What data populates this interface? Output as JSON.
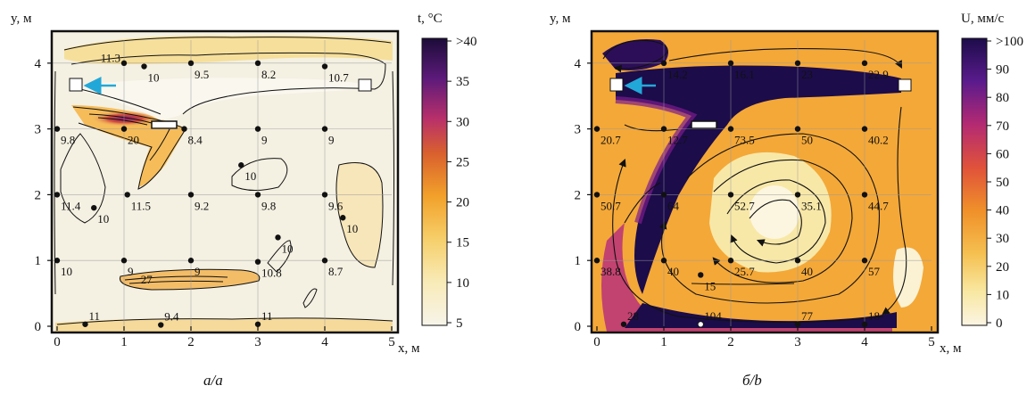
{
  "chart_data": [
    {
      "type": "heatmap",
      "caption": "а/a",
      "ylabel": "y, м",
      "xlabel": "x, м",
      "xlim": [
        0,
        5
      ],
      "ylim": [
        0,
        4.35
      ],
      "xticks": [
        0,
        1,
        2,
        3,
        4,
        5
      ],
      "yticks": [
        0,
        1,
        2,
        3,
        4
      ],
      "colorbar": {
        "title": "t, °C",
        "ticks": [
          "5",
          "10",
          "15",
          "20",
          "25",
          "30",
          "35",
          ">40"
        ],
        "min": 5,
        "max": 40
      },
      "colors": {
        "low": "#f7f4ea",
        "mid": "#f2a12a",
        "high": "#1c0c38"
      },
      "points": [
        {
          "x": 1,
          "y": 4,
          "label": ""
        },
        {
          "x": 1.3,
          "y": 3.95,
          "label": "10"
        },
        {
          "x": 2,
          "y": 4,
          "label": "9.5"
        },
        {
          "x": 3,
          "y": 4,
          "label": "8.2"
        },
        {
          "x": 4,
          "y": 3.95,
          "label": "10.7"
        },
        {
          "x": 0,
          "y": 3,
          "label": "9.8"
        },
        {
          "x": 1,
          "y": 3,
          "label": "20"
        },
        {
          "x": 1.9,
          "y": 3,
          "label": "8.4"
        },
        {
          "x": 3,
          "y": 3,
          "label": "9"
        },
        {
          "x": 4,
          "y": 3,
          "label": "9"
        },
        {
          "x": 2.75,
          "y": 2.45,
          "label": "10"
        },
        {
          "x": 0,
          "y": 2,
          "label": "11.4"
        },
        {
          "x": 1.05,
          "y": 2,
          "label": "11.5"
        },
        {
          "x": 2,
          "y": 2,
          "label": "9.2"
        },
        {
          "x": 3,
          "y": 2,
          "label": "9.8"
        },
        {
          "x": 4,
          "y": 2,
          "label": "9.6"
        },
        {
          "x": 0.55,
          "y": 1.8,
          "label": "10"
        },
        {
          "x": 4.27,
          "y": 1.65,
          "label": "10"
        },
        {
          "x": 3.3,
          "y": 1.35,
          "label": "10"
        },
        {
          "x": 0,
          "y": 1,
          "label": "10"
        },
        {
          "x": 1,
          "y": 1,
          "label": "9"
        },
        {
          "x": 2,
          "y": 1,
          "label": "9"
        },
        {
          "x": 3,
          "y": 0.98,
          "label": "10.8"
        },
        {
          "x": 4,
          "y": 1,
          "label": "8.7"
        },
        {
          "x": 0.42,
          "y": 0.03,
          "label": "11"
        },
        {
          "x": 1.55,
          "y": 0.02,
          "label": "9.4"
        },
        {
          "x": 3,
          "y": 0.03,
          "label": "11"
        }
      ],
      "annotations": [
        {
          "x": 1.25,
          "y": 0.65,
          "label": "27"
        },
        {
          "x": 0.65,
          "y": 4.02,
          "label": "11.3"
        }
      ],
      "arrow_color": "#22a8d8"
    },
    {
      "type": "heatmap",
      "caption": "б/b",
      "ylabel": "y, м",
      "xlabel": "x, м",
      "xlim": [
        0,
        5
      ],
      "ylim": [
        0,
        4.35
      ],
      "xticks": [
        0,
        1,
        2,
        3,
        4,
        5
      ],
      "yticks": [
        0,
        1,
        2,
        3,
        4
      ],
      "colorbar": {
        "title": "U, мм/с",
        "ticks": [
          "0",
          "10",
          "20",
          "30",
          "40",
          "50",
          "60",
          "70",
          "80",
          "90",
          ">100"
        ],
        "min": 0,
        "max": 100
      },
      "colors": {
        "low": "#fbf5e3",
        "mid": "#e8742a",
        "high": "#1c0c4a"
      },
      "points": [
        {
          "x": 1,
          "y": 4,
          "label": "14.2"
        },
        {
          "x": 2,
          "y": 4,
          "label": "16.1"
        },
        {
          "x": 3,
          "y": 4,
          "label": "23"
        },
        {
          "x": 4,
          "y": 4,
          "label": "22.9"
        },
        {
          "x": 0,
          "y": 3,
          "label": "20.7"
        },
        {
          "x": 1,
          "y": 3,
          "label": "12.7"
        },
        {
          "x": 2,
          "y": 3,
          "label": "73.5"
        },
        {
          "x": 3,
          "y": 3,
          "label": "50"
        },
        {
          "x": 4,
          "y": 3,
          "label": "40.2"
        },
        {
          "x": 0,
          "y": 2,
          "label": "50.7"
        },
        {
          "x": 1,
          "y": 2,
          "label": "64"
        },
        {
          "x": 2,
          "y": 2,
          "label": "52.7"
        },
        {
          "x": 3,
          "y": 2,
          "label": "35.1"
        },
        {
          "x": 4,
          "y": 2,
          "label": "44.7"
        },
        {
          "x": 0,
          "y": 1,
          "label": "38.8"
        },
        {
          "x": 1,
          "y": 1,
          "label": "40"
        },
        {
          "x": 2,
          "y": 1,
          "label": "25.7"
        },
        {
          "x": 3,
          "y": 1,
          "label": "40"
        },
        {
          "x": 4,
          "y": 1,
          "label": "57"
        },
        {
          "x": 1.55,
          "y": 0.78,
          "label": "15"
        },
        {
          "x": 0.4,
          "y": 0.03,
          "label": "28"
        },
        {
          "x": 1.55,
          "y": 0.03,
          "label": "104"
        },
        {
          "x": 3,
          "y": 0.03,
          "label": "77"
        },
        {
          "x": 4,
          "y": 0.03,
          "label": "18"
        }
      ],
      "arrow_color": "#22a8d8"
    }
  ]
}
